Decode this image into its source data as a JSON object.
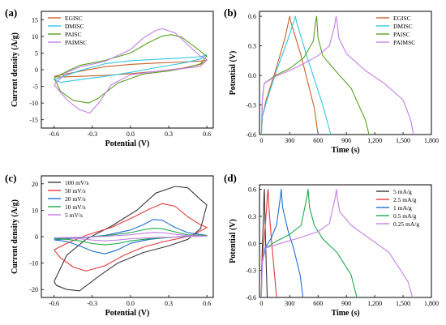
{
  "figure": {
    "description_labels": [
      "(a)",
      "(b)",
      "(c)",
      "(d)"
    ]
  },
  "chart_data": [
    {
      "panel": "(a)",
      "type": "line",
      "xlabel": "Potential (V)",
      "ylabel": "Current density (A/g)",
      "xlim": [
        -0.7,
        0.65
      ],
      "ylim": [
        -17.5,
        17.5
      ],
      "xticks": [
        -0.6,
        -0.3,
        0.0,
        0.3,
        0.6
      ],
      "xtick_labels": [
        "-0.6",
        "-0.3",
        "0.0",
        "0.3",
        "0.6"
      ],
      "yticks": [
        -15,
        -10,
        -5,
        0,
        5,
        10,
        15
      ],
      "ytick_labels": [
        "-15",
        "-10",
        "-5",
        "0",
        "5",
        "10",
        "15"
      ],
      "legend_position": "top-left",
      "series": [
        {
          "name": "EGISC",
          "color": "#c8622a",
          "x": [
            -0.6,
            -0.4,
            -0.2,
            0.0,
            0.2,
            0.4,
            0.55,
            0.6,
            0.55,
            0.4,
            0.2,
            0.0,
            -0.2,
            -0.4,
            -0.55,
            -0.6
          ],
          "y": [
            -2.0,
            -0.5,
            0.9,
            1.6,
            2.0,
            2.3,
            2.6,
            2.8,
            1.6,
            0.4,
            -0.5,
            -1.2,
            -1.7,
            -2.0,
            -2.2,
            -2.0
          ]
        },
        {
          "name": "DMISC",
          "color": "#34c6e6",
          "x": [
            -0.6,
            -0.4,
            -0.2,
            0.0,
            0.2,
            0.4,
            0.55,
            0.6,
            0.55,
            0.4,
            0.2,
            0.0,
            -0.2,
            -0.4,
            -0.55,
            -0.6
          ],
          "y": [
            -3.0,
            -0.3,
            1.8,
            2.7,
            3.1,
            3.5,
            3.9,
            4.5,
            3.2,
            1.9,
            0.6,
            -0.8,
            -2.0,
            -3.0,
            -3.8,
            -3.0
          ]
        },
        {
          "name": "PAISC",
          "color": "#5aa020",
          "x": [
            -0.6,
            -0.5,
            -0.4,
            -0.2,
            0.0,
            0.15,
            0.25,
            0.32,
            0.4,
            0.5,
            0.6,
            0.55,
            0.45,
            0.3,
            0.1,
            -0.1,
            -0.25,
            -0.33,
            -0.45,
            -0.55,
            -0.6
          ],
          "y": [
            -2.5,
            -0.5,
            1.3,
            2.8,
            5.0,
            8.3,
            10.1,
            10.5,
            9.8,
            7.0,
            4.0,
            1.8,
            0.6,
            -0.4,
            -1.3,
            -4.0,
            -8.5,
            -10.0,
            -9.2,
            -6.5,
            -2.5
          ]
        },
        {
          "name": "PAIMSC",
          "color": "#c77ee8",
          "x": [
            -0.6,
            -0.5,
            -0.4,
            -0.2,
            0.0,
            0.1,
            0.2,
            0.25,
            0.35,
            0.45,
            0.55,
            0.6,
            0.55,
            0.4,
            0.2,
            0.0,
            -0.15,
            -0.25,
            -0.32,
            -0.4,
            -0.5,
            -0.6
          ],
          "y": [
            -4.5,
            -0.8,
            0.8,
            2.5,
            6.0,
            9.5,
            11.8,
            12.3,
            11.0,
            7.5,
            4.0,
            3.0,
            1.0,
            0.3,
            -0.5,
            -1.5,
            -4.5,
            -10.0,
            -13.0,
            -12.0,
            -9.0,
            -4.5
          ]
        }
      ]
    },
    {
      "panel": "(b)",
      "type": "line",
      "xlabel": "Time (s)",
      "ylabel": "Potential (V)",
      "xlim": [
        -20,
        1800
      ],
      "ylim": [
        -0.6,
        0.65
      ],
      "xticks": [
        0,
        300,
        600,
        900,
        1200,
        1500,
        1800
      ],
      "xtick_labels": [
        "0",
        "300",
        "600",
        "900",
        "1,200",
        "1,500",
        "1,800"
      ],
      "yticks": [
        -0.6,
        -0.3,
        0.0,
        0.3,
        0.6
      ],
      "ytick_labels": [
        "-0.6",
        "-0.3",
        "0.0",
        "0.3",
        "0.6"
      ],
      "legend_position": "top-right",
      "series": [
        {
          "name": "EGISC",
          "color": "#c8622a",
          "x": [
            0,
            10,
            50,
            150,
            250,
            295,
            300,
            310,
            420,
            560,
            600
          ],
          "y": [
            -0.6,
            -0.42,
            -0.25,
            0.05,
            0.38,
            0.58,
            0.6,
            0.55,
            0.2,
            -0.33,
            -0.6
          ]
        },
        {
          "name": "DMISC",
          "color": "#34c6e6",
          "x": [
            0,
            10,
            60,
            160,
            280,
            350,
            360,
            370,
            480,
            650,
            735
          ],
          "y": [
            -0.6,
            -0.42,
            -0.25,
            0.05,
            0.36,
            0.57,
            0.6,
            0.55,
            0.2,
            -0.3,
            -0.6
          ]
        },
        {
          "name": "PAISC",
          "color": "#5aa020",
          "x": [
            0,
            10,
            30,
            150,
            300,
            450,
            550,
            575,
            585,
            600,
            650,
            800,
            950,
            1100,
            1140
          ],
          "y": [
            -0.6,
            -0.25,
            -0.08,
            0.0,
            0.07,
            0.18,
            0.35,
            0.55,
            0.6,
            0.38,
            0.2,
            0.03,
            -0.13,
            -0.45,
            -0.6
          ]
        },
        {
          "name": "PAIMSC",
          "color": "#c77ee8",
          "x": [
            0,
            10,
            30,
            150,
            300,
            450,
            600,
            720,
            775,
            790,
            800,
            820,
            900,
            1100,
            1300,
            1500,
            1580,
            1610
          ],
          "y": [
            -0.6,
            -0.25,
            -0.08,
            -0.01,
            0.05,
            0.12,
            0.2,
            0.3,
            0.5,
            0.6,
            0.55,
            0.38,
            0.22,
            0.05,
            -0.08,
            -0.25,
            -0.45,
            -0.6
          ]
        }
      ]
    },
    {
      "panel": "(c)",
      "type": "line",
      "xlabel": "Potential (V)",
      "ylabel": "Current density (A/g)",
      "xlim": [
        -0.7,
        0.65
      ],
      "ylim": [
        -23,
        23
      ],
      "xticks": [
        -0.6,
        -0.3,
        0.0,
        0.3,
        0.6
      ],
      "xtick_labels": [
        "-0.6",
        "-0.3",
        "0.0",
        "0.3",
        "0.6"
      ],
      "yticks": [
        -20,
        -10,
        0,
        10,
        20
      ],
      "ytick_labels": [
        "-20",
        "-10",
        "0",
        "10",
        "20"
      ],
      "legend_position": "top-left",
      "series": [
        {
          "name": "100 mV/s",
          "color": "#3a3a3a",
          "x": [
            -0.6,
            -0.5,
            -0.35,
            -0.15,
            0.05,
            0.2,
            0.35,
            0.45,
            0.55,
            0.6,
            0.55,
            0.45,
            0.3,
            0.1,
            -0.1,
            -0.25,
            -0.4,
            -0.5,
            -0.58,
            -0.6
          ],
          "y": [
            -17.0,
            -7.0,
            -1.0,
            4.0,
            10.0,
            16.5,
            19.0,
            18.5,
            14.0,
            12.0,
            3.0,
            -1.0,
            -3.5,
            -6.0,
            -10.0,
            -15.0,
            -20.5,
            -20.0,
            -18.5,
            -17.0
          ]
        },
        {
          "name": "50 mV/s",
          "color": "#e23b3b",
          "x": [
            -0.6,
            -0.5,
            -0.35,
            -0.15,
            0.05,
            0.15,
            0.25,
            0.35,
            0.45,
            0.55,
            0.6,
            0.5,
            0.4,
            0.25,
            0.1,
            -0.05,
            -0.2,
            -0.35,
            -0.45,
            -0.55,
            -0.6
          ],
          "y": [
            -5.0,
            -2.5,
            0.5,
            3.5,
            8.0,
            10.5,
            12.5,
            11.5,
            7.5,
            4.5,
            3.5,
            0.8,
            -0.5,
            -2.0,
            -4.0,
            -7.0,
            -11.0,
            -13.0,
            -11.5,
            -8.0,
            -5.0
          ]
        },
        {
          "name": "20 mV/s",
          "color": "#1f6fd6",
          "x": [
            -0.6,
            -0.4,
            -0.2,
            0.0,
            0.1,
            0.18,
            0.25,
            0.35,
            0.45,
            0.6,
            0.45,
            0.3,
            0.15,
            0.0,
            -0.1,
            -0.2,
            -0.3,
            -0.4,
            -0.5,
            -0.6
          ],
          "y": [
            -1.2,
            -0.5,
            0.5,
            2.5,
            4.5,
            6.5,
            6.2,
            3.5,
            1.5,
            0.5,
            0.2,
            -0.3,
            -1.0,
            -2.5,
            -5.0,
            -6.5,
            -5.5,
            -3.5,
            -1.8,
            -1.2
          ]
        },
        {
          "name": "10 mV/s",
          "color": "#1faa4a",
          "x": [
            -0.6,
            -0.4,
            -0.2,
            0.0,
            0.1,
            0.18,
            0.25,
            0.35,
            0.45,
            0.6,
            0.45,
            0.3,
            0.15,
            0.0,
            -0.1,
            -0.2,
            -0.3,
            -0.4,
            -0.5,
            -0.6
          ],
          "y": [
            -0.8,
            -0.4,
            0.3,
            1.5,
            2.6,
            3.2,
            3.0,
            1.8,
            0.7,
            0.4,
            0.1,
            -0.3,
            -0.8,
            -1.6,
            -2.6,
            -3.1,
            -2.6,
            -1.6,
            -1.0,
            -0.8
          ]
        },
        {
          "name": "5 mV/s",
          "color": "#c77ee8",
          "x": [
            -0.6,
            -0.4,
            -0.2,
            0.0,
            0.1,
            0.18,
            0.25,
            0.35,
            0.45,
            0.6,
            0.45,
            0.3,
            0.15,
            0.0,
            -0.1,
            -0.2,
            -0.3,
            -0.4,
            -0.5,
            -0.6
          ],
          "y": [
            -0.4,
            -0.2,
            0.1,
            0.7,
            1.3,
            1.6,
            1.5,
            0.9,
            0.4,
            0.2,
            0.0,
            -0.2,
            -0.4,
            -0.8,
            -1.3,
            -1.6,
            -1.3,
            -0.8,
            -0.5,
            -0.4
          ]
        }
      ]
    },
    {
      "panel": "(d)",
      "type": "line",
      "xlabel": "Time (s)",
      "ylabel": "Potential (V)",
      "xlim": [
        -20,
        1800
      ],
      "ylim": [
        -0.6,
        0.65
      ],
      "xticks": [
        0,
        300,
        600,
        900,
        1200,
        1500,
        1800
      ],
      "xtick_labels": [
        "0",
        "300",
        "600",
        "900",
        "1,200",
        "1,500",
        "1,800"
      ],
      "yticks": [
        -0.6,
        -0.3,
        0.0,
        0.3,
        0.6
      ],
      "ytick_labels": [
        "-0.6",
        "-0.3",
        "0.0",
        "0.3",
        "0.6"
      ],
      "legend_position": "top-right",
      "series": [
        {
          "name": "5 mA/g",
          "color": "#3a3a3a",
          "x": [
            0,
            3,
            10,
            20,
            28,
            32,
            35,
            45,
            55,
            62
          ],
          "y": [
            -0.6,
            -0.3,
            -0.05,
            0.25,
            0.55,
            0.6,
            0.4,
            0.0,
            -0.35,
            -0.6
          ]
        },
        {
          "name": "2.5 mA/g",
          "color": "#e23b3b",
          "x": [
            0,
            5,
            20,
            45,
            65,
            72,
            80,
            110,
            140,
            160
          ],
          "y": [
            -0.6,
            -0.25,
            -0.05,
            0.25,
            0.55,
            0.6,
            0.4,
            0.0,
            -0.35,
            -0.6
          ]
        },
        {
          "name": "1 mA/g",
          "color": "#1f6fd6",
          "x": [
            0,
            8,
            40,
            100,
            160,
            200,
            210,
            225,
            280,
            340,
            410,
            440
          ],
          "y": [
            -0.6,
            -0.22,
            -0.05,
            0.05,
            0.2,
            0.5,
            0.6,
            0.4,
            0.15,
            -0.05,
            -0.35,
            -0.6
          ]
        },
        {
          "name": "0.5 mA/g",
          "color": "#1faa4a",
          "x": [
            0,
            8,
            50,
            150,
            300,
            420,
            480,
            495,
            510,
            560,
            650,
            800,
            950,
            1010
          ],
          "y": [
            -0.6,
            -0.2,
            -0.05,
            0.02,
            0.1,
            0.2,
            0.5,
            0.6,
            0.4,
            0.2,
            0.05,
            -0.1,
            -0.35,
            -0.6
          ]
        },
        {
          "name": "0.25 mA/g",
          "color": "#c77ee8",
          "x": [
            0,
            10,
            50,
            200,
            400,
            600,
            720,
            780,
            795,
            805,
            830,
            950,
            1150,
            1350,
            1550,
            1600
          ],
          "y": [
            -0.6,
            -0.18,
            -0.05,
            0.0,
            0.06,
            0.13,
            0.22,
            0.5,
            0.6,
            0.5,
            0.35,
            0.2,
            0.05,
            -0.1,
            -0.42,
            -0.6
          ]
        }
      ]
    }
  ]
}
